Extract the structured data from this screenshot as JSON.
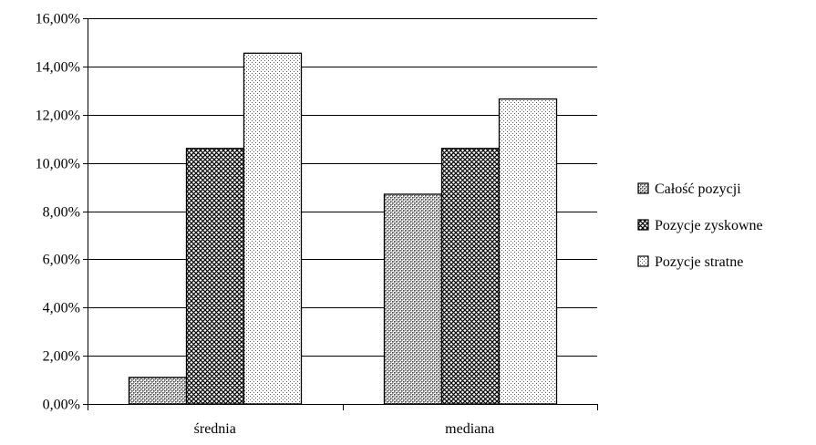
{
  "chart_data": {
    "type": "bar",
    "categories": [
      "średnia",
      "mediana"
    ],
    "series": [
      {
        "name": "Całość pozycji",
        "values": [
          0.011,
          0.087
        ]
      },
      {
        "name": "Pozycje zyskowne",
        "values": [
          0.106,
          0.106
        ]
      },
      {
        "name": "Pozycje stratne",
        "values": [
          0.1455,
          0.1265
        ]
      }
    ],
    "ylim": [
      0,
      0.16
    ],
    "yticks": [
      0,
      0.02,
      0.04,
      0.06,
      0.08,
      0.1,
      0.12,
      0.14,
      0.16
    ],
    "ytick_labels": [
      "0,00%",
      "2,00%",
      "4,00%",
      "6,00%",
      "8,00%",
      "10,00%",
      "12,00%",
      "14,00%",
      "16,00%"
    ],
    "grid": true,
    "legend_position": "right"
  }
}
